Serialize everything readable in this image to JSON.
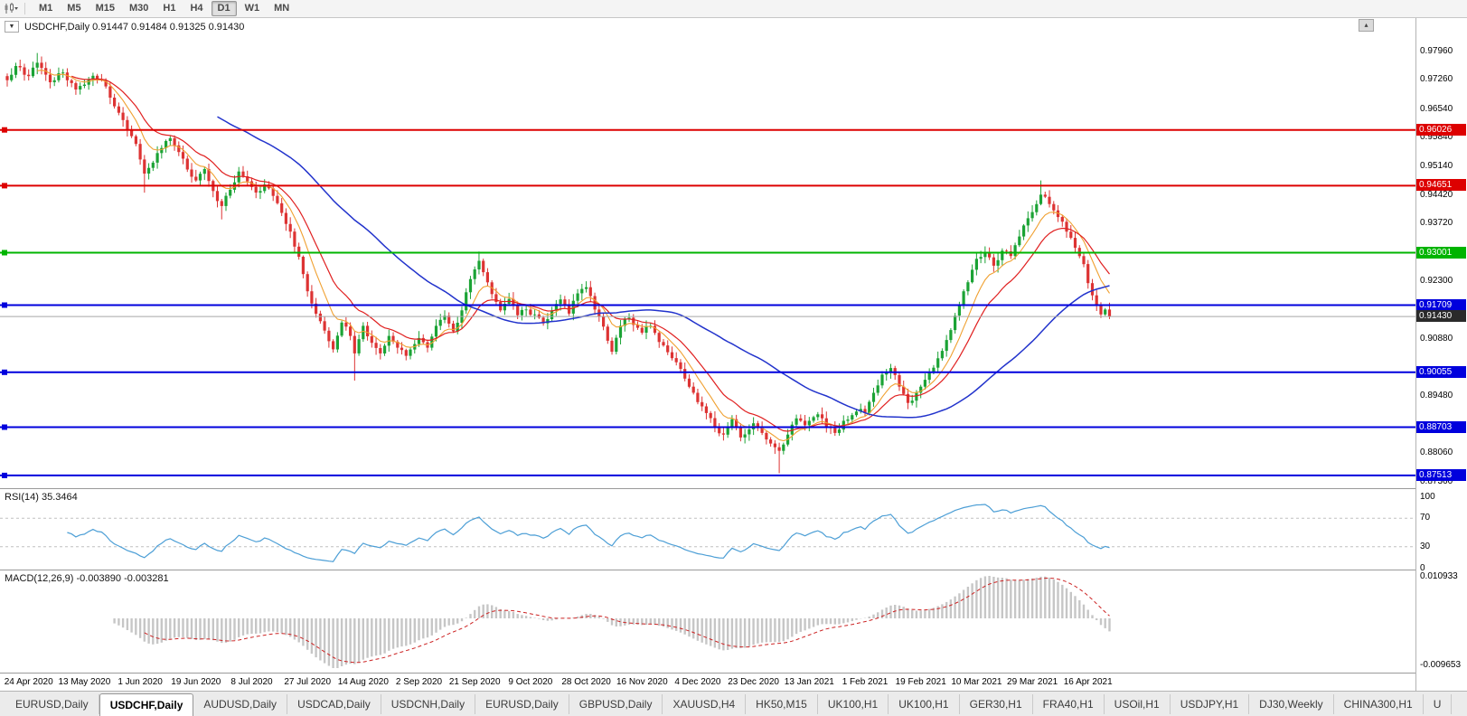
{
  "toolbar": {
    "chart_type_icon": "candlestick-chart-icon",
    "timeframes": [
      "M1",
      "M5",
      "M15",
      "M30",
      "H1",
      "H4",
      "D1",
      "W1",
      "MN"
    ],
    "active_timeframe": "D1",
    "corner_button_glyph": "▴",
    "symbol_dropdown_glyph": "▼"
  },
  "chart": {
    "title": "USDCHF,Daily 0.91447 0.91484 0.91325 0.91430",
    "symbol": "USDCHF",
    "period": "Daily",
    "open": "0.91447",
    "high": "0.91484",
    "low": "0.91325",
    "close": "0.91430"
  },
  "price_axis": {
    "ticks": [
      "0.97960",
      "0.97260",
      "0.96540",
      "0.95840",
      "0.95140",
      "0.94420",
      "0.93720",
      "0.92300",
      "0.90880",
      "0.89480",
      "0.88060",
      "0.87360"
    ],
    "level_labels": [
      {
        "text": "0.96026",
        "bg": "#dd0000"
      },
      {
        "text": "0.94651",
        "bg": "#dd0000"
      },
      {
        "text": "0.93001",
        "bg": "#00b400"
      },
      {
        "text": "0.91709",
        "bg": "#0000dd"
      },
      {
        "text": "0.91430",
        "bg": "#2a2a2a"
      },
      {
        "text": "0.90055",
        "bg": "#0000dd"
      },
      {
        "text": "0.88703",
        "bg": "#0000dd"
      },
      {
        "text": "0.87513",
        "bg": "#0000dd"
      }
    ]
  },
  "rsi": {
    "label": "RSI(14) 35.3464",
    "ticks": [
      "100",
      "70",
      "30",
      "0"
    ]
  },
  "macd": {
    "label": "MACD(12,26,9) -0.003890 -0.003281",
    "ticks": [
      "0.010933",
      "-0.009653"
    ]
  },
  "date_axis": [
    "24 Apr 2020",
    "13 May 2020",
    "1 Jun 2020",
    "19 Jun 2020",
    "8 Jul 2020",
    "27 Jul 2020",
    "14 Aug 2020",
    "2 Sep 2020",
    "21 Sep 2020",
    "9 Oct 2020",
    "28 Oct 2020",
    "16 Nov 2020",
    "4 Dec 2020",
    "23 Dec 2020",
    "13 Jan 2021",
    "1 Feb 2021",
    "19 Feb 2021",
    "10 Mar 2021",
    "29 Mar 2021",
    "16 Apr 2021"
  ],
  "tabs": [
    {
      "label": "EURUSD,Daily",
      "active": false
    },
    {
      "label": "USDCHF,Daily",
      "active": true
    },
    {
      "label": "AUDUSD,Daily",
      "active": false
    },
    {
      "label": "USDCAD,Daily",
      "active": false
    },
    {
      "label": "USDCNH,Daily",
      "active": false
    },
    {
      "label": "EURUSD,Daily",
      "active": false
    },
    {
      "label": "GBPUSD,Daily",
      "active": false
    },
    {
      "label": "XAUUSD,H4",
      "active": false
    },
    {
      "label": "HK50,M15",
      "active": false
    },
    {
      "label": "UK100,H1",
      "active": false
    },
    {
      "label": "UK100,H1",
      "active": false
    },
    {
      "label": "GER30,H1",
      "active": false
    },
    {
      "label": "FRA40,H1",
      "active": false
    },
    {
      "label": "USOil,H1",
      "active": false
    },
    {
      "label": "USDJPY,H1",
      "active": false
    },
    {
      "label": "DJ30,Weekly",
      "active": false
    },
    {
      "label": "CHINA300,H1",
      "active": false
    },
    {
      "label": "U",
      "active": false
    }
  ],
  "chart_data": {
    "type": "candlestick",
    "symbol": "USDCHF",
    "timeframe": "Daily",
    "ohlc_current": {
      "open": 0.91447,
      "high": 0.91484,
      "low": 0.91325,
      "close": 0.9143
    },
    "current_price": 0.9143,
    "y_range": [
      0.872,
      0.9878
    ],
    "bar_count": 258,
    "label_every": {
      "start_bar": 5,
      "step": 13
    },
    "horizontal_levels": [
      {
        "price": 0.96026,
        "color": "#dd0000"
      },
      {
        "price": 0.94651,
        "color": "#dd0000"
      },
      {
        "price": 0.93001,
        "color": "#00b400"
      },
      {
        "price": 0.91709,
        "color": "#0000dd"
      },
      {
        "price": 0.90055,
        "color": "#0000dd"
      },
      {
        "price": 0.88703,
        "color": "#0000dd"
      },
      {
        "price": 0.87513,
        "color": "#0000dd"
      }
    ],
    "close_path_anchors": [
      [
        0,
        0.9725
      ],
      [
        2,
        0.976
      ],
      [
        5,
        0.9735
      ],
      [
        7,
        0.9768
      ],
      [
        10,
        0.972
      ],
      [
        13,
        0.9744
      ],
      [
        16,
        0.9702
      ],
      [
        18,
        0.9714
      ],
      [
        20,
        0.9736
      ],
      [
        22,
        0.9725
      ],
      [
        24,
        0.9682
      ],
      [
        26,
        0.9645
      ],
      [
        28,
        0.9602
      ],
      [
        30,
        0.9568
      ],
      [
        32,
        0.9495
      ],
      [
        34,
        0.9522
      ],
      [
        36,
        0.9558
      ],
      [
        38,
        0.9582
      ],
      [
        40,
        0.9548
      ],
      [
        42,
        0.9505
      ],
      [
        44,
        0.9478
      ],
      [
        46,
        0.9506
      ],
      [
        48,
        0.9452
      ],
      [
        50,
        0.9415
      ],
      [
        52,
        0.9455
      ],
      [
        54,
        0.95
      ],
      [
        56,
        0.9476
      ],
      [
        58,
        0.9448
      ],
      [
        60,
        0.9468
      ],
      [
        62,
        0.944
      ],
      [
        64,
        0.9398
      ],
      [
        66,
        0.9352
      ],
      [
        68,
        0.929
      ],
      [
        70,
        0.9205
      ],
      [
        72,
        0.915
      ],
      [
        74,
        0.9108
      ],
      [
        76,
        0.9062
      ],
      [
        78,
        0.9128
      ],
      [
        80,
        0.9095
      ],
      [
        81,
        0.9052
      ],
      [
        83,
        0.912
      ],
      [
        85,
        0.9078
      ],
      [
        87,
        0.9052
      ],
      [
        89,
        0.9095
      ],
      [
        91,
        0.9066
      ],
      [
        93,
        0.9046
      ],
      [
        95,
        0.9075
      ],
      [
        96,
        0.909
      ],
      [
        98,
        0.9066
      ],
      [
        100,
        0.912
      ],
      [
        102,
        0.9145
      ],
      [
        104,
        0.9106
      ],
      [
        106,
        0.9158
      ],
      [
        108,
        0.9235
      ],
      [
        110,
        0.928
      ],
      [
        111,
        0.9252
      ],
      [
        113,
        0.9198
      ],
      [
        115,
        0.9158
      ],
      [
        117,
        0.9186
      ],
      [
        119,
        0.9146
      ],
      [
        121,
        0.916
      ],
      [
        123,
        0.9148
      ],
      [
        125,
        0.9126
      ],
      [
        127,
        0.9158
      ],
      [
        129,
        0.9185
      ],
      [
        131,
        0.915
      ],
      [
        133,
        0.92
      ],
      [
        135,
        0.9215
      ],
      [
        137,
        0.916
      ],
      [
        139,
        0.9118
      ],
      [
        141,
        0.9056
      ],
      [
        143,
        0.912
      ],
      [
        145,
        0.914
      ],
      [
        147,
        0.9115
      ],
      [
        148,
        0.9103
      ],
      [
        150,
        0.912
      ],
      [
        152,
        0.908
      ],
      [
        154,
        0.9055
      ],
      [
        156,
        0.903
      ],
      [
        158,
        0.899
      ],
      [
        160,
        0.8955
      ],
      [
        161,
        0.8932
      ],
      [
        163,
        0.8905
      ],
      [
        165,
        0.887
      ],
      [
        167,
        0.8852
      ],
      [
        169,
        0.889
      ],
      [
        171,
        0.8845
      ],
      [
        173,
        0.8865
      ],
      [
        174,
        0.888
      ],
      [
        176,
        0.8856
      ],
      [
        178,
        0.883
      ],
      [
        180,
        0.8812
      ],
      [
        182,
        0.8852
      ],
      [
        184,
        0.8892
      ],
      [
        186,
        0.8875
      ],
      [
        187,
        0.8886
      ],
      [
        189,
        0.8902
      ],
      [
        191,
        0.887
      ],
      [
        193,
        0.8856
      ],
      [
        195,
        0.8886
      ],
      [
        197,
        0.89
      ],
      [
        199,
        0.8915
      ],
      [
        200,
        0.8905
      ],
      [
        202,
        0.8955
      ],
      [
        204,
        0.9
      ],
      [
        206,
        0.9016
      ],
      [
        208,
        0.897
      ],
      [
        210,
        0.893
      ],
      [
        212,
        0.8955
      ],
      [
        213,
        0.897
      ],
      [
        215,
        0.9005
      ],
      [
        217,
        0.904
      ],
      [
        219,
        0.9085
      ],
      [
        221,
        0.9145
      ],
      [
        223,
        0.9205
      ],
      [
        225,
        0.9258
      ],
      [
        226,
        0.9285
      ],
      [
        228,
        0.93
      ],
      [
        230,
        0.9268
      ],
      [
        232,
        0.9305
      ],
      [
        234,
        0.9292
      ],
      [
        236,
        0.934
      ],
      [
        238,
        0.9385
      ],
      [
        239,
        0.94
      ],
      [
        241,
        0.9443
      ],
      [
        243,
        0.942
      ],
      [
        245,
        0.9388
      ],
      [
        247,
        0.9352
      ],
      [
        249,
        0.9312
      ],
      [
        251,
        0.9272
      ],
      [
        252,
        0.9225
      ],
      [
        253,
        0.9195
      ],
      [
        254,
        0.9172
      ],
      [
        255,
        0.9148
      ],
      [
        256,
        0.916
      ],
      [
        257,
        0.9143
      ]
    ],
    "wick_extremes": [
      {
        "bar": 7,
        "high": 0.9792
      },
      {
        "bar": 32,
        "low": 0.9448
      },
      {
        "bar": 50,
        "low": 0.9382
      },
      {
        "bar": 81,
        "low": 0.8985
      },
      {
        "bar": 110,
        "high": 0.9303
      },
      {
        "bar": 180,
        "low": 0.8757
      },
      {
        "bar": 241,
        "high": 0.9478
      }
    ],
    "indicators": {
      "rsi": {
        "period": 14,
        "current": 35.3464,
        "levels": [
          70,
          30
        ],
        "color": "#4d9fd6"
      },
      "macd": {
        "fast": 12,
        "slow": 26,
        "signal": 9,
        "current_macd": -0.00389,
        "current_signal": -0.003281,
        "axis_max": 0.010933,
        "axis_min": -0.009653,
        "hist_color": "#c6c6c6",
        "signal_color": "#cc2222"
      },
      "moving_averages": [
        {
          "period": 8,
          "type": "ema",
          "color": "#f0a030",
          "width": 1.1
        },
        {
          "period": 16,
          "type": "ema",
          "color": "#e02020",
          "width": 1.2
        },
        {
          "period": 50,
          "type": "sma",
          "color": "#2233cc",
          "width": 1.5
        }
      ]
    },
    "colors": {
      "up": "#1ba335",
      "down": "#dd3333",
      "background": "#ffffff",
      "current_price_line": "#a8a8a8"
    }
  }
}
